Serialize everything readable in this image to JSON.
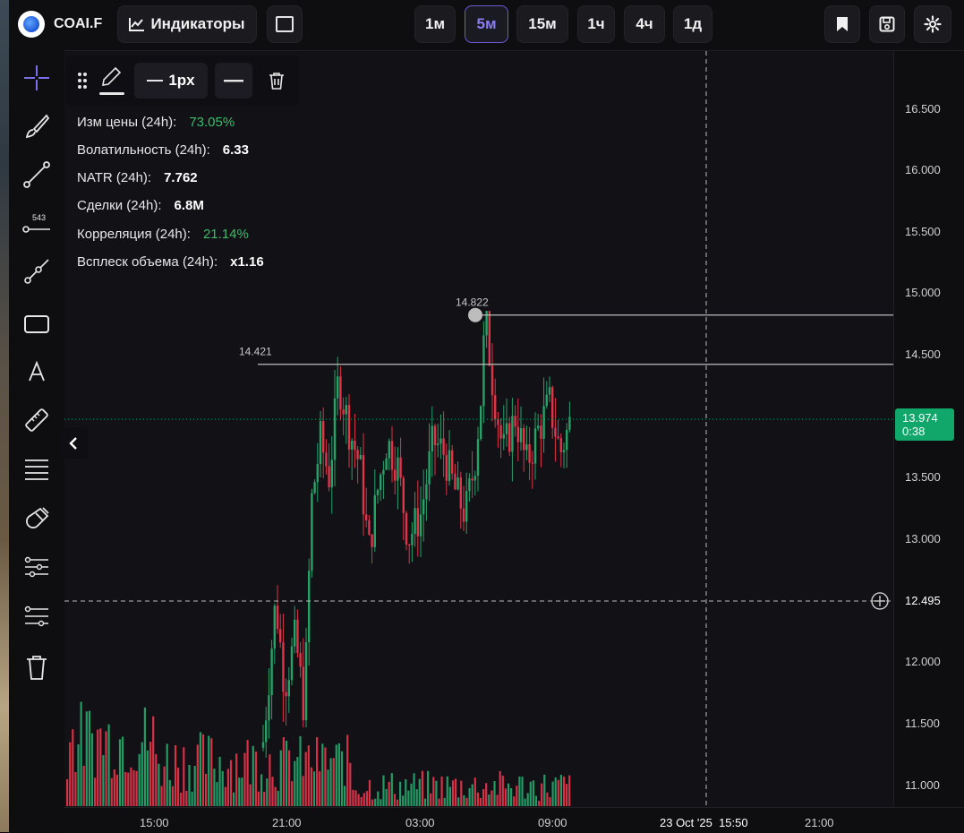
{
  "topbar": {
    "ticker": "COAI.F",
    "indicators_label": "Индикаторы",
    "timeframes": [
      "1м",
      "5м",
      "15м",
      "1ч",
      "4ч",
      "1д"
    ],
    "active_timeframe": "5м"
  },
  "drawing_toolbar": {
    "line_width_label": "1px"
  },
  "stats": [
    {
      "label": "Изм цены",
      "period": "(24h):",
      "value": "73.05%",
      "green": true
    },
    {
      "label": "Волатильность",
      "period": "(24h):",
      "value": "6.33",
      "green": false
    },
    {
      "label": "NATR",
      "period": "(24h):",
      "value": "7.762",
      "green": false
    },
    {
      "label": "Сделки",
      "period": "(24h):",
      "value": "6.8M",
      "green": false
    },
    {
      "label": "Корреляция",
      "period": "(24h):",
      "value": "21.14%",
      "green": true
    },
    {
      "label": "Всплеск объема",
      "period": "(24h):",
      "value": "x1.16",
      "green": false
    }
  ],
  "price_axis": {
    "labels": [
      "16.500",
      "16.000",
      "15.500",
      "15.000",
      "14.500",
      "13.500",
      "13.000",
      "12.000",
      "11.500",
      "11.000"
    ],
    "crosshair_price": "12.495",
    "last_price": "13.974",
    "countdown": "0:38"
  },
  "time_axis": {
    "labels": [
      "15:00",
      "21:00",
      "03:00",
      "09:00",
      "23 Oct '25  15:50",
      "21:00"
    ]
  },
  "annotations": {
    "high_label": "14.822",
    "level_label": "14.421"
  },
  "colors": {
    "up": "#26a269",
    "down": "#e0344a",
    "accent": "#6b5cd6",
    "last_price_bg": "#11a66a"
  },
  "chart_data": {
    "type": "candlestick",
    "ylim": [
      10.9,
      16.7
    ],
    "xlabel": "",
    "ylabel": "",
    "horizontal_levels": [
      14.822,
      14.421
    ],
    "last_price": 13.974,
    "crosshair_price": 12.495,
    "ohlc_segments": [
      {
        "range": "15:00-19:00",
        "price": "no candles visible"
      },
      {
        "range": "20:30",
        "open": 11.4,
        "high": 12.6,
        "low": 11.2,
        "close": 12.4
      },
      {
        "range": "21:30",
        "open": 12.4,
        "high": 13.7,
        "low": 12.0,
        "close": 13.6
      },
      {
        "range": "23:00",
        "open": 13.6,
        "high": 14.4,
        "low": 13.4,
        "close": 14.0
      },
      {
        "range": "01:00",
        "open": 14.0,
        "high": 14.1,
        "low": 12.9,
        "close": 13.2
      },
      {
        "range": "03:00",
        "open": 13.2,
        "high": 13.9,
        "low": 12.9,
        "close": 13.5
      },
      {
        "range": "05:00",
        "open": 13.5,
        "high": 14.0,
        "low": 13.1,
        "close": 13.8
      },
      {
        "range": "06:00",
        "open": 13.8,
        "high": 14.82,
        "low": 13.6,
        "close": 14.2
      },
      {
        "range": "08:00",
        "open": 14.2,
        "high": 14.3,
        "low": 13.4,
        "close": 13.9
      },
      {
        "range": "09:30",
        "open": 13.9,
        "high": 14.2,
        "low": 13.5,
        "close": 13.974
      }
    ]
  }
}
